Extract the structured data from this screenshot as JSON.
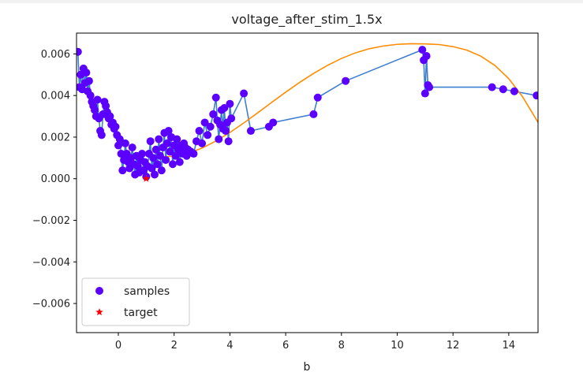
{
  "chart_data": {
    "type": "scatter",
    "title": "voltage_after_stim_1.5x",
    "xlabel": "b",
    "ylabel": "",
    "xlim": [
      -1.5,
      15.05
    ],
    "ylim": [
      -0.0074,
      0.007
    ],
    "x_ticks": [
      0,
      2,
      4,
      6,
      8,
      10,
      12,
      14
    ],
    "x_tick_labels": [
      "0",
      "2",
      "4",
      "6",
      "8",
      "10",
      "12",
      "14"
    ],
    "y_ticks": [
      0.006,
      0.004,
      0.002,
      0.0,
      -0.002,
      -0.004,
      -0.006
    ],
    "y_tick_labels": [
      "0.006",
      "0.004",
      "0.002",
      "0.000",
      "−0.002",
      "−0.004",
      "−0.006"
    ],
    "legend": {
      "placement": "lower-left",
      "entries": [
        {
          "label": "samples",
          "marker": "circle",
          "color": "#5b00ff"
        },
        {
          "label": "target",
          "marker": "star",
          "color": "#ff0000"
        }
      ]
    },
    "series": [
      {
        "kind": "line-with-markers",
        "color_line": "#3f7fd0",
        "color_marker": "#5b00ff",
        "points": [
          [
            -1.45,
            0.0061
          ],
          [
            -1.4,
            0.0044
          ],
          [
            -1.35,
            0.005
          ],
          [
            -1.3,
            0.0043
          ],
          [
            -1.25,
            0.0053
          ],
          [
            -1.2,
            0.0046
          ],
          [
            -1.15,
            0.0051
          ],
          [
            -1.1,
            0.0042
          ],
          [
            -1.05,
            0.0047
          ],
          [
            -1.0,
            0.004
          ],
          [
            -0.95,
            0.0037
          ],
          [
            -0.9,
            0.0035
          ],
          [
            -0.85,
            0.0033
          ],
          [
            -0.8,
            0.003
          ],
          [
            -0.75,
            0.0038
          ],
          [
            -0.7,
            0.0029
          ],
          [
            -0.65,
            0.0023
          ],
          [
            -0.6,
            0.0021
          ],
          [
            -0.55,
            0.0031
          ],
          [
            -0.5,
            0.0037
          ],
          [
            -0.45,
            0.0035
          ],
          [
            -0.4,
            0.0032
          ],
          [
            -0.35,
            0.0029
          ],
          [
            -0.3,
            0.003
          ],
          [
            -0.25,
            0.0026
          ],
          [
            -0.2,
            0.0027
          ],
          [
            -0.15,
            0.0024
          ],
          [
            -0.1,
            0.0025
          ],
          [
            -0.05,
            0.0021
          ],
          [
            0.0,
            0.0016
          ],
          [
            0.05,
            0.0019
          ],
          [
            0.1,
            0.0012
          ],
          [
            0.15,
            0.0004
          ],
          [
            0.2,
            0.0009
          ],
          [
            0.25,
            0.0017
          ],
          [
            0.3,
            0.0012
          ],
          [
            0.35,
            0.0008
          ],
          [
            0.4,
            0.0005
          ],
          [
            0.45,
            0.001
          ],
          [
            0.5,
            0.0015
          ],
          [
            0.55,
            0.0007
          ],
          [
            0.6,
            0.0002
          ],
          [
            0.65,
            0.0011
          ],
          [
            0.7,
            0.0006
          ],
          [
            0.75,
            0.0003
          ],
          [
            0.8,
            0.0009
          ],
          [
            0.85,
            0.0012
          ],
          [
            0.9,
            0.0004
          ],
          [
            0.95,
            0.0008
          ],
          [
            1.0,
            0.0001
          ],
          [
            1.05,
            0.0006
          ],
          [
            1.1,
            0.0012
          ],
          [
            1.15,
            0.0018
          ],
          [
            1.2,
            0.0005
          ],
          [
            1.25,
            0.001
          ],
          [
            1.3,
            0.0002
          ],
          [
            1.35,
            0.0014
          ],
          [
            1.4,
            0.0007
          ],
          [
            1.45,
            0.0019
          ],
          [
            1.5,
            0.0011
          ],
          [
            1.55,
            0.0004
          ],
          [
            1.6,
            0.0015
          ],
          [
            1.65,
            0.0022
          ],
          [
            1.7,
            0.0009
          ],
          [
            1.75,
            0.0017
          ],
          [
            1.8,
            0.0023
          ],
          [
            1.85,
            0.0013
          ],
          [
            1.9,
            0.002
          ],
          [
            1.95,
            0.0007
          ],
          [
            2.0,
            0.0016
          ],
          [
            2.05,
            0.0011
          ],
          [
            2.1,
            0.0019
          ],
          [
            2.15,
            0.0014
          ],
          [
            2.2,
            0.0008
          ],
          [
            2.25,
            0.0016
          ],
          [
            2.3,
            0.0012
          ],
          [
            2.35,
            0.0017
          ],
          [
            2.4,
            0.0015
          ],
          [
            2.45,
            0.0011
          ],
          [
            2.5,
            0.0014
          ],
          [
            2.6,
            0.0013
          ],
          [
            2.7,
            0.0012
          ],
          [
            2.8,
            0.0018
          ],
          [
            2.9,
            0.0023
          ],
          [
            3.0,
            0.0017
          ],
          [
            3.1,
            0.0027
          ],
          [
            3.2,
            0.0021
          ],
          [
            3.3,
            0.0025
          ],
          [
            3.4,
            0.0031
          ],
          [
            3.5,
            0.0039
          ],
          [
            3.55,
            0.0028
          ],
          [
            3.6,
            0.0019
          ],
          [
            3.65,
            0.0026
          ],
          [
            3.7,
            0.0033
          ],
          [
            3.75,
            0.0024
          ],
          [
            3.8,
            0.0034
          ],
          [
            3.85,
            0.0023
          ],
          [
            3.9,
            0.0027
          ],
          [
            3.95,
            0.0018
          ],
          [
            4.0,
            0.0036
          ],
          [
            4.05,
            0.0029
          ],
          [
            4.5,
            0.0041
          ],
          [
            4.75,
            0.0023
          ],
          [
            5.4,
            0.0025
          ],
          [
            5.55,
            0.0027
          ],
          [
            7.0,
            0.0031
          ],
          [
            7.15,
            0.0039
          ],
          [
            8.15,
            0.0047
          ],
          [
            10.9,
            0.0062
          ],
          [
            10.95,
            0.0057
          ],
          [
            11.0,
            0.0041
          ],
          [
            11.05,
            0.0059
          ],
          [
            11.1,
            0.0045
          ],
          [
            11.15,
            0.0044
          ],
          [
            13.4,
            0.0044
          ],
          [
            13.8,
            0.0043
          ],
          [
            14.2,
            0.0042
          ],
          [
            15.0,
            0.004
          ]
        ]
      },
      {
        "kind": "fit-curve",
        "color_line": "#ff8c00",
        "points": [
          [
            1.6,
            0.00105
          ],
          [
            2.0,
            0.00108
          ],
          [
            2.5,
            0.00122
          ],
          [
            3.0,
            0.00147
          ],
          [
            3.5,
            0.00181
          ],
          [
            4.0,
            0.00222
          ],
          [
            4.5,
            0.00268
          ],
          [
            5.0,
            0.00317
          ],
          [
            5.5,
            0.00367
          ],
          [
            6.0,
            0.00416
          ],
          [
            6.5,
            0.00463
          ],
          [
            7.0,
            0.00506
          ],
          [
            7.5,
            0.00545
          ],
          [
            8.0,
            0.00578
          ],
          [
            8.5,
            0.00605
          ],
          [
            9.0,
            0.00625
          ],
          [
            9.5,
            0.00638
          ],
          [
            10.0,
            0.00646
          ],
          [
            10.5,
            0.00649
          ],
          [
            11.0,
            0.00648
          ],
          [
            11.5,
            0.00645
          ],
          [
            12.0,
            0.00635
          ],
          [
            12.5,
            0.00618
          ],
          [
            13.0,
            0.00589
          ],
          [
            13.5,
            0.00545
          ],
          [
            14.0,
            0.00481
          ],
          [
            14.5,
            0.00393
          ],
          [
            15.05,
            0.00271
          ]
        ]
      }
    ],
    "target": {
      "x": 1.0,
      "y": 0.0,
      "color": "#ff0000"
    }
  }
}
